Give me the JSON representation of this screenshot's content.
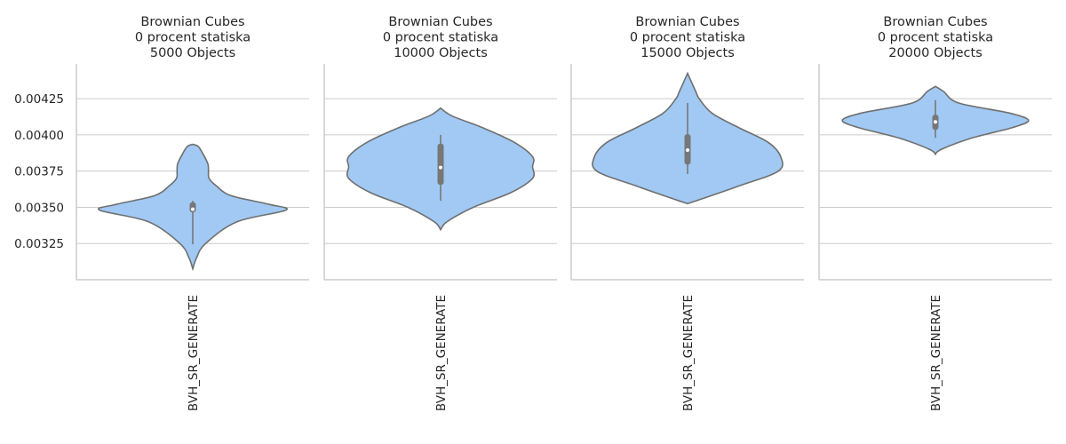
{
  "chart_data": {
    "type": "violin",
    "ylim": [
      0.003,
      0.00449
    ],
    "yticks": [
      0.00325,
      0.0035,
      0.00375,
      0.004,
      0.00425
    ],
    "ytick_labels": [
      "0.00325",
      "0.00350",
      "0.00375",
      "0.00400",
      "0.00425"
    ],
    "grid": true,
    "colors": {
      "violin_fill": "#a1c9f4",
      "violin_edge": "#6f6f6f",
      "box": "#777777",
      "grid": "#cccccc"
    },
    "panels": [
      {
        "title_lines": [
          "Brownian Cubes",
          "0 procent statiska",
          "5000 Objects"
        ],
        "category": "BVH_SR_GENERATE",
        "box": {
          "whisker_low": 0.003245,
          "q1": 0.003465,
          "median": 0.003487,
          "q3": 0.003535,
          "whisker_high": 0.003545
        },
        "shape": [
          [
            0.003075,
            0.0
          ],
          [
            0.00315,
            0.032
          ],
          [
            0.00325,
            0.11
          ],
          [
            0.0034,
            0.38
          ],
          [
            0.00348,
            0.8
          ],
          [
            0.00352,
            0.66
          ],
          [
            0.00358,
            0.33
          ],
          [
            0.00365,
            0.2
          ],
          [
            0.0037,
            0.14
          ],
          [
            0.00375,
            0.135
          ],
          [
            0.0038,
            0.13
          ],
          [
            0.00387,
            0.087
          ],
          [
            0.00392,
            0.047
          ],
          [
            0.003935,
            0.0
          ]
        ]
      },
      {
        "title_lines": [
          "Brownian Cubes",
          "0 procent statiska",
          "10000 Objects"
        ],
        "category": "BVH_SR_GENERATE",
        "box": {
          "whisker_low": 0.003545,
          "q1": 0.003655,
          "median": 0.003775,
          "q3": 0.00394,
          "whisker_high": 0.004
        },
        "shape": [
          [
            0.003345,
            0.0
          ],
          [
            0.0034,
            0.055
          ],
          [
            0.0035,
            0.28
          ],
          [
            0.0036,
            0.6
          ],
          [
            0.0037,
            0.79
          ],
          [
            0.00378,
            0.79
          ],
          [
            0.00385,
            0.79
          ],
          [
            0.00395,
            0.63
          ],
          [
            0.00405,
            0.36
          ],
          [
            0.00413,
            0.1
          ],
          [
            0.004185,
            0.0
          ]
        ]
      },
      {
        "title_lines": [
          "Brownian Cubes",
          "0 procent statiska",
          "15000 Objects"
        ],
        "category": "BVH_SR_GENERATE",
        "box": {
          "whisker_low": 0.00373,
          "q1": 0.003795,
          "median": 0.003895,
          "q3": 0.004005,
          "whisker_high": 0.00422
        },
        "shape": [
          [
            0.003525,
            0.0
          ],
          [
            0.00356,
            0.13
          ],
          [
            0.00365,
            0.45
          ],
          [
            0.00375,
            0.78
          ],
          [
            0.00385,
            0.8
          ],
          [
            0.00395,
            0.69
          ],
          [
            0.00405,
            0.44
          ],
          [
            0.00415,
            0.21
          ],
          [
            0.00425,
            0.1
          ],
          [
            0.0043,
            0.07
          ],
          [
            0.004425,
            0.0
          ]
        ]
      },
      {
        "title_lines": [
          "Brownian Cubes",
          "0 procent statiska",
          "20000 Objects"
        ],
        "category": "BVH_SR_GENERATE",
        "box": {
          "whisker_low": 0.00398,
          "q1": 0.004035,
          "median": 0.00409,
          "q3": 0.00414,
          "whisker_high": 0.00424
        },
        "shape": [
          [
            0.003865,
            0.0
          ],
          [
            0.0039,
            0.05
          ],
          [
            0.00398,
            0.32
          ],
          [
            0.00405,
            0.66
          ],
          [
            0.0041,
            0.8
          ],
          [
            0.00415,
            0.64
          ],
          [
            0.00422,
            0.2
          ],
          [
            0.0043,
            0.07
          ],
          [
            0.004335,
            0.0
          ]
        ]
      }
    ]
  }
}
